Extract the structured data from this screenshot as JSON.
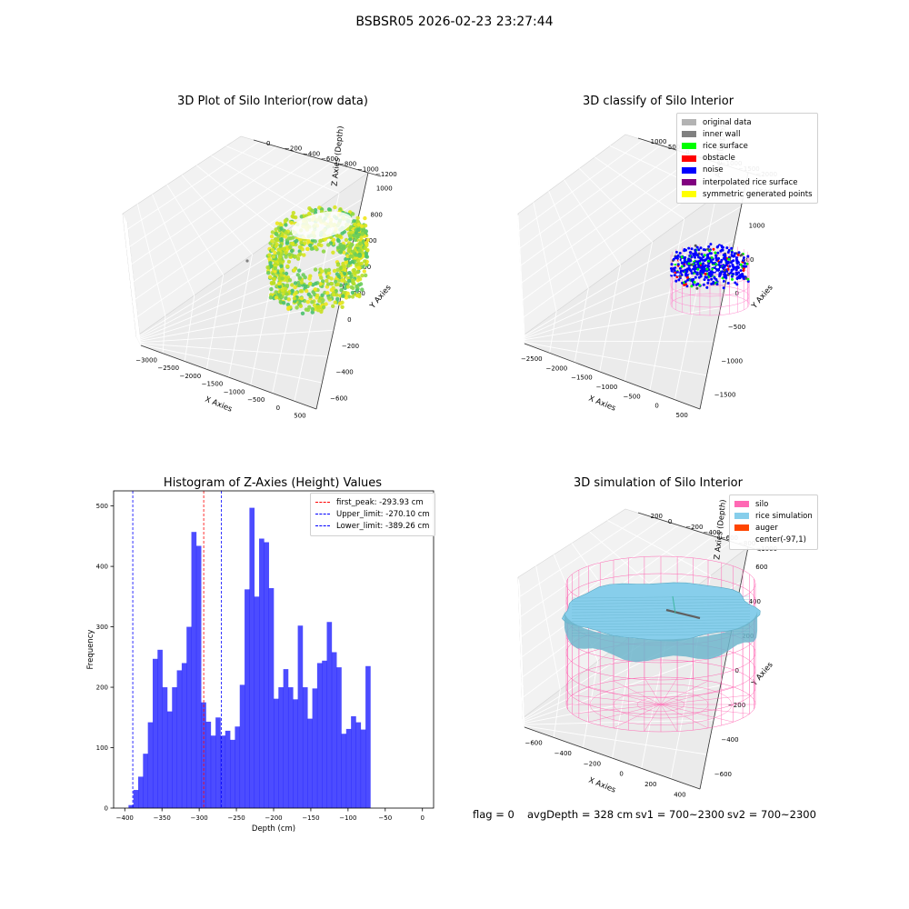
{
  "suptitle": "BSBSR05 2026-02-23 23:27:44",
  "panels": {
    "raw": {
      "title": "3D Plot of Silo Interior(row data)",
      "xlabel": "X Axies",
      "ylabel": "Y Axies",
      "zlabel": "Z Axies (Depth)",
      "xticks": [
        "−3000",
        "−2500",
        "−2000",
        "−1500",
        "−1000",
        "−500",
        "0",
        "500"
      ],
      "yticks": [
        "−600",
        "−400",
        "−200",
        "0",
        "200",
        "400",
        "600",
        "800",
        "1000"
      ],
      "zticks": [
        "0",
        "−200",
        "−400",
        "−600",
        "−800",
        "−1000",
        "−1200"
      ]
    },
    "classify": {
      "title": "3D classify of Silo Interior",
      "xlabel": "X Axies",
      "ylabel": "Y Axies",
      "zlabel": "Z Axies (Depth)",
      "xticks": [
        "−2500",
        "−2000",
        "−1500",
        "−1000",
        "−500",
        "0",
        "500"
      ],
      "yticks": [
        "−1500",
        "−1000",
        "−500",
        "0",
        "500",
        "1000",
        "1500"
      ],
      "zticks": [
        "1000",
        "500",
        "0",
        "−500",
        "−1000",
        "−1500",
        "−2000"
      ],
      "legend": [
        {
          "label": "original data",
          "color": "#b3b3b3"
        },
        {
          "label": "inner wall",
          "color": "#808080"
        },
        {
          "label": "rice surface",
          "color": "#00ff00"
        },
        {
          "label": "obstacle",
          "color": "#ff0000"
        },
        {
          "label": "noise",
          "color": "#0000ff"
        },
        {
          "label": "interpolated rice surface",
          "color": "#800080"
        },
        {
          "label": "symmetric generated points",
          "color": "#ffff00"
        }
      ]
    },
    "simulation": {
      "title": "3D simulation of Silo Interior",
      "xlabel": "X Axies",
      "ylabel": "Y Axies",
      "zlabel": "Z Axies (Depth)",
      "xticks": [
        "−600",
        "−400",
        "−200",
        "0",
        "200",
        "400"
      ],
      "yticks": [
        "−600",
        "−400",
        "−200",
        "0",
        "200",
        "400",
        "600"
      ],
      "zticks": [
        "200",
        "0",
        "−200",
        "−400",
        "−600",
        "−800",
        "−1000"
      ],
      "legend": [
        {
          "label": "silo",
          "color": "#ff69b4"
        },
        {
          "label": "rice simulation",
          "color": "#87ceeb"
        },
        {
          "label": "auger",
          "color": "#ff4500"
        },
        {
          "label": "center(-97,1)",
          "color": ""
        }
      ]
    }
  },
  "footer": {
    "flag": "flag = 0",
    "avg": "avgDepth = 328 cm",
    "sv1": "sv1 = 700~2300",
    "sv2": "sv2 = 700~2300"
  },
  "chart_data": [
    {
      "type": "histogram",
      "title": "Histogram of Z-Axies (Height) Values",
      "xlabel": "Depth (cm)",
      "ylabel": "Frequency",
      "xlim": [
        -415,
        15
      ],
      "ylim": [
        0,
        525
      ],
      "xticks": [
        -400,
        -350,
        -300,
        -250,
        -200,
        -150,
        -100,
        -50,
        0
      ],
      "yticks": [
        0,
        100,
        200,
        300,
        400,
        500
      ],
      "bin_start": -395,
      "bin_width": 6.5,
      "color": "#0000ff",
      "values": [
        5,
        30,
        52,
        90,
        142,
        247,
        262,
        200,
        160,
        200,
        228,
        240,
        300,
        457,
        434,
        175,
        143,
        120,
        150,
        120,
        128,
        113,
        135,
        204,
        362,
        497,
        350,
        446,
        440,
        364,
        181,
        200,
        230,
        200,
        180,
        302,
        200,
        148,
        198,
        240,
        244,
        308,
        258,
        233,
        123,
        131,
        152,
        142,
        130,
        235
      ],
      "lines": [
        {
          "label": "first_peak: -293.93 cm",
          "x": -293.93,
          "color": "#ff0000"
        },
        {
          "label": "Upper_limit: -270.10 cm",
          "x": -270.1,
          "color": "#0000ff"
        },
        {
          "label": "Lower_limit: -389.26 cm",
          "x": -389.26,
          "color": "#0000ff"
        }
      ]
    }
  ]
}
